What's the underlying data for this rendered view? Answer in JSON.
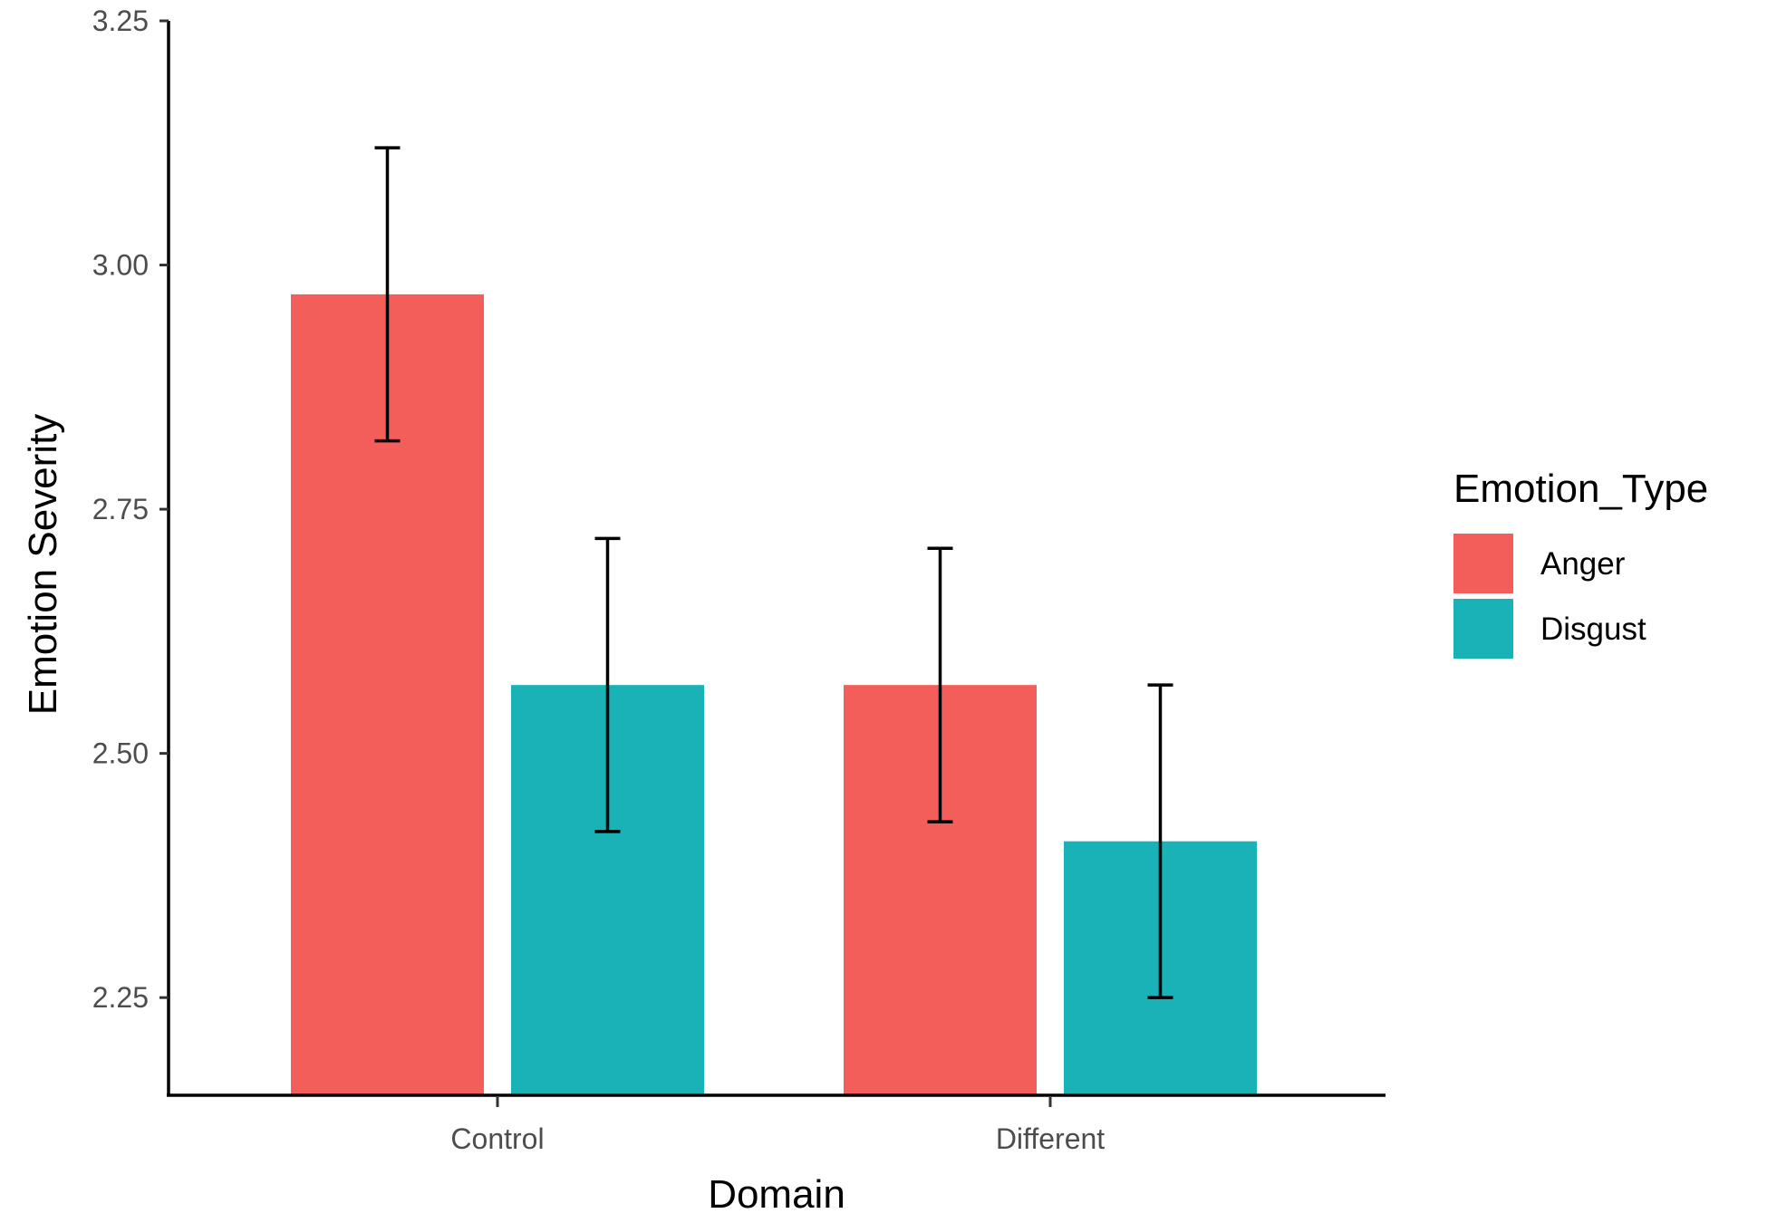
{
  "chart_data": {
    "type": "bar",
    "title": "",
    "xlabel": "Domain",
    "ylabel": "Emotion Severity",
    "categories": [
      "Control",
      "Different"
    ],
    "ylim": [
      2.15,
      3.25
    ],
    "yticks": [
      "2.25",
      "2.50",
      "2.75",
      "3.00",
      "3.25"
    ],
    "grid": false,
    "legend": {
      "title": "Emotion_Type",
      "position": "right"
    },
    "series": [
      {
        "name": "Anger",
        "color": "#F35E5A",
        "values": [
          2.97,
          2.57
        ],
        "error_low": [
          2.82,
          2.43
        ],
        "error_high": [
          3.12,
          2.71
        ]
      },
      {
        "name": "Disgust",
        "color": "#19B3B7",
        "values": [
          2.57,
          2.41
        ],
        "error_low": [
          2.42,
          2.25
        ],
        "error_high": [
          2.72,
          2.57
        ]
      }
    ]
  }
}
